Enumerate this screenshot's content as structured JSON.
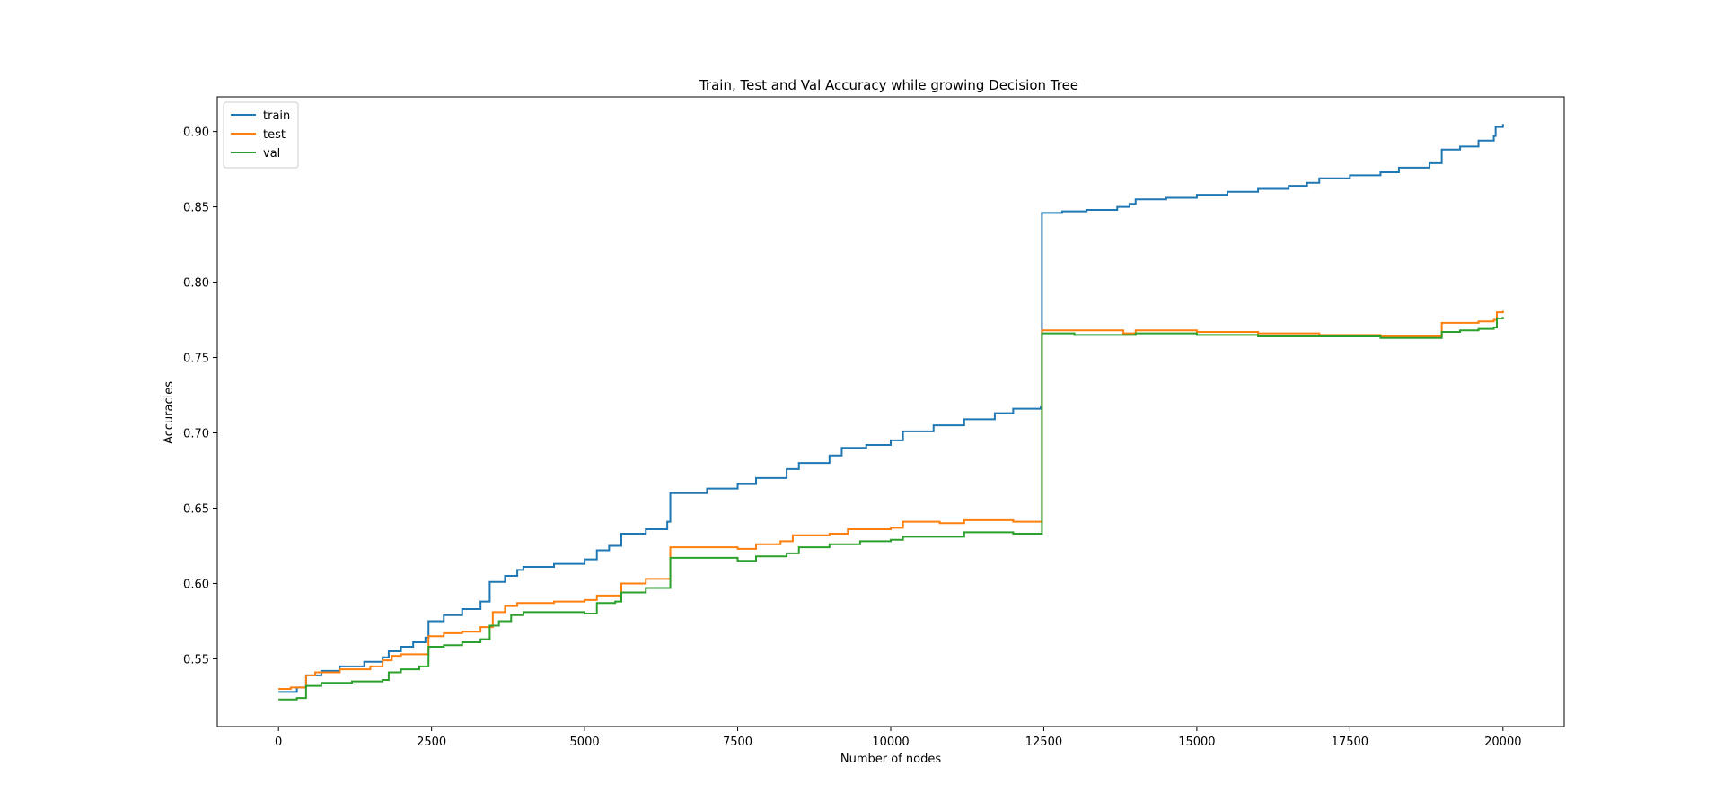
{
  "chart_data": {
    "type": "line",
    "title": "Train, Test and Val Accuracy while growing Decision Tree",
    "xlabel": "Number of nodes",
    "ylabel": "Accuracies",
    "xlim": [
      -1000,
      21000
    ],
    "ylim": [
      0.505,
      0.923
    ],
    "xticks": [
      0,
      2500,
      5000,
      7500,
      10000,
      12500,
      15000,
      17500,
      20000
    ],
    "xtick_labels": [
      "0",
      "2500",
      "5000",
      "7500",
      "10000",
      "12500",
      "15000",
      "17500",
      "20000"
    ],
    "yticks": [
      0.55,
      0.6,
      0.65,
      0.7,
      0.75,
      0.8,
      0.85,
      0.9
    ],
    "ytick_labels": [
      "0.55",
      "0.60",
      "0.65",
      "0.70",
      "0.75",
      "0.80",
      "0.85",
      "0.90"
    ],
    "grid": false,
    "legend_position": "top-left",
    "series": [
      {
        "name": "train",
        "color": "#1f77b4",
        "x": [
          0,
          300,
          450,
          700,
          1000,
          1400,
          1700,
          1800,
          2000,
          2200,
          2400,
          2450,
          2700,
          3000,
          3300,
          3450,
          3700,
          3900,
          4000,
          4500,
          5000,
          5200,
          5400,
          5600,
          6000,
          6350,
          6400,
          7000,
          7500,
          7800,
          8300,
          8500,
          9000,
          9200,
          9600,
          10000,
          10200,
          10700,
          11200,
          11700,
          12000,
          12450,
          12470,
          12800,
          13200,
          13700,
          13900,
          14000,
          14500,
          15000,
          15500,
          16000,
          16500,
          16800,
          17000,
          17500,
          18000,
          18300,
          18800,
          19000,
          19300,
          19600,
          19850,
          19880,
          20000
        ],
        "y": [
          0.528,
          0.531,
          0.539,
          0.542,
          0.545,
          0.548,
          0.551,
          0.555,
          0.558,
          0.561,
          0.564,
          0.575,
          0.579,
          0.583,
          0.588,
          0.601,
          0.605,
          0.609,
          0.611,
          0.613,
          0.616,
          0.622,
          0.625,
          0.633,
          0.636,
          0.641,
          0.66,
          0.663,
          0.666,
          0.67,
          0.676,
          0.68,
          0.685,
          0.69,
          0.692,
          0.695,
          0.701,
          0.705,
          0.709,
          0.713,
          0.716,
          0.717,
          0.846,
          0.847,
          0.848,
          0.85,
          0.852,
          0.855,
          0.856,
          0.858,
          0.86,
          0.862,
          0.864,
          0.866,
          0.869,
          0.871,
          0.873,
          0.876,
          0.879,
          0.888,
          0.89,
          0.894,
          0.897,
          0.903,
          0.905
        ]
      },
      {
        "name": "test",
        "color": "#ff7f0e",
        "x": [
          0,
          200,
          450,
          600,
          1000,
          1500,
          1700,
          1850,
          2000,
          2450,
          2700,
          3000,
          3300,
          3500,
          3700,
          3900,
          4500,
          5000,
          5200,
          5600,
          6000,
          6400,
          7000,
          7500,
          7800,
          8200,
          8400,
          9000,
          9300,
          10000,
          10200,
          10800,
          11200,
          12000,
          12450,
          12470,
          13000,
          13800,
          14000,
          15000,
          16000,
          17000,
          18000,
          18500,
          19000,
          19300,
          19600,
          19850,
          19900,
          20000
        ],
        "y": [
          0.53,
          0.531,
          0.539,
          0.541,
          0.543,
          0.545,
          0.549,
          0.552,
          0.553,
          0.565,
          0.567,
          0.568,
          0.571,
          0.581,
          0.585,
          0.587,
          0.588,
          0.589,
          0.592,
          0.6,
          0.603,
          0.624,
          0.624,
          0.623,
          0.626,
          0.628,
          0.632,
          0.633,
          0.636,
          0.637,
          0.641,
          0.64,
          0.642,
          0.641,
          0.641,
          0.768,
          0.768,
          0.766,
          0.768,
          0.767,
          0.766,
          0.765,
          0.764,
          0.764,
          0.773,
          0.773,
          0.774,
          0.775,
          0.78,
          0.781
        ]
      },
      {
        "name": "val",
        "color": "#2ca02c",
        "x": [
          0,
          300,
          450,
          700,
          1200,
          1700,
          1800,
          2000,
          2300,
          2450,
          2700,
          3000,
          3300,
          3450,
          3600,
          3800,
          4000,
          4500,
          5000,
          5200,
          5500,
          5600,
          6000,
          6400,
          7000,
          7500,
          7800,
          8300,
          8500,
          9000,
          9500,
          10000,
          10200,
          10800,
          11200,
          12000,
          12450,
          12470,
          13000,
          14000,
          15000,
          16000,
          17000,
          18000,
          19000,
          19300,
          19600,
          19850,
          19900,
          20000
        ],
        "y": [
          0.523,
          0.524,
          0.532,
          0.534,
          0.535,
          0.536,
          0.541,
          0.543,
          0.545,
          0.558,
          0.559,
          0.561,
          0.563,
          0.572,
          0.575,
          0.579,
          0.581,
          0.581,
          0.58,
          0.587,
          0.588,
          0.594,
          0.597,
          0.617,
          0.617,
          0.615,
          0.618,
          0.62,
          0.624,
          0.626,
          0.628,
          0.629,
          0.631,
          0.631,
          0.634,
          0.633,
          0.633,
          0.766,
          0.765,
          0.766,
          0.765,
          0.764,
          0.764,
          0.763,
          0.767,
          0.768,
          0.769,
          0.77,
          0.776,
          0.777
        ]
      }
    ]
  }
}
